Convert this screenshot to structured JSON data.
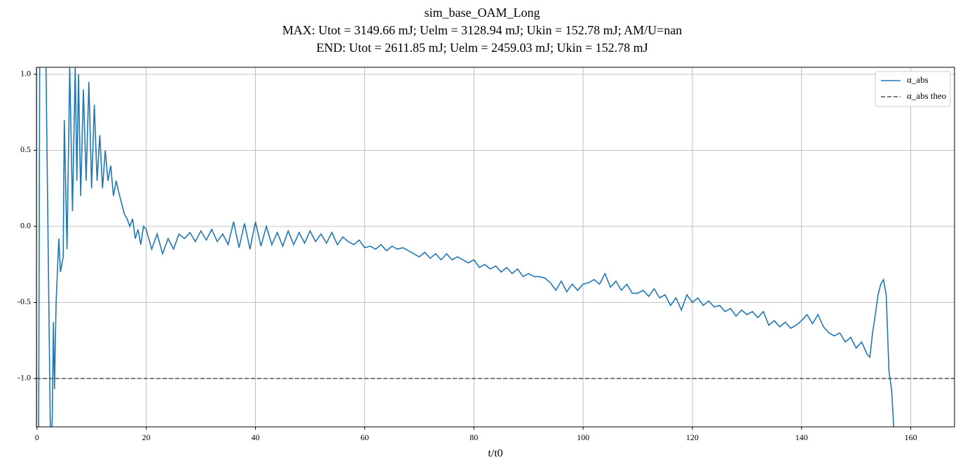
{
  "chart_data": {
    "type": "line",
    "title": "sim_base_OAM_Long",
    "subtitle": [
      "MAX: Utot = 3149.66 mJ;  Uelm = 3128.94 mJ; Ukin = 152.78 mJ;  AM/U=nan",
      "END: Utot = 2611.85 mJ;  Uelm = 2459.03 mJ;  Ukin = 152.78 mJ"
    ],
    "xlabel": "t/t0",
    "xlim": [
      -0.1,
      168
    ],
    "ylim": [
      -1.318,
      1.046
    ],
    "xticks": [
      0,
      20,
      40,
      60,
      80,
      100,
      120,
      140,
      160
    ],
    "yticks": [
      {
        "value": -1,
        "label": "-1.0"
      },
      {
        "value": -0.5,
        "label": "-0.5"
      },
      {
        "value": 0,
        "label": "0.0"
      },
      {
        "value": 0.5,
        "label": "0.5"
      },
      {
        "value": 1,
        "label": "1.0"
      }
    ],
    "grid": true,
    "legend": "upper right",
    "series": [
      {
        "name": "α_abs",
        "color": "#1f77b4",
        "x": [
          0,
          0.3,
          0.5,
          1.5,
          2.5,
          2.8,
          3.0,
          3.2,
          3.5,
          4.0,
          4.3,
          4.8,
          5.0,
          5.5,
          6.0,
          6.5,
          7.0,
          7.3,
          7.6,
          8.0,
          8.5,
          9,
          9.5,
          10,
          10.5,
          11,
          11.5,
          12,
          12.5,
          13,
          13.5,
          14,
          14.5,
          15,
          15.5,
          16,
          16.5,
          17,
          17.5,
          18,
          18.5,
          19,
          19.5,
          20,
          21,
          22,
          23,
          24,
          25,
          26,
          27,
          28,
          29,
          30,
          31,
          32,
          33,
          34,
          35,
          36,
          37,
          38,
          39,
          40,
          41,
          42,
          43,
          44,
          45,
          46,
          47,
          48,
          49,
          50,
          51,
          52,
          53,
          54,
          55,
          56,
          57,
          58,
          59,
          60,
          61,
          62,
          63,
          64,
          65,
          66,
          67,
          68,
          69,
          70,
          71,
          72,
          73,
          74,
          75,
          76,
          77,
          78,
          79,
          80,
          81,
          82,
          83,
          84,
          85,
          86,
          87,
          88,
          89,
          90,
          91,
          92,
          93,
          94,
          95,
          96,
          97,
          98,
          99,
          100,
          101,
          102,
          103,
          104,
          105,
          106,
          107,
          108,
          109,
          110,
          111,
          112,
          113,
          114,
          115,
          116,
          117,
          118,
          119,
          120,
          121,
          122,
          123,
          124,
          125,
          126,
          127,
          128,
          129,
          130,
          131,
          132,
          133,
          134,
          135,
          136,
          137,
          138,
          139,
          140,
          141,
          142,
          143,
          144,
          145,
          146,
          147,
          148,
          149,
          150,
          151,
          152,
          152.5,
          153,
          153.5,
          154,
          154.5,
          155,
          155.5,
          156,
          156.5,
          157
        ],
        "values": [
          -1.4,
          -1.4,
          1.1,
          1.5,
          -1.5,
          -1.26,
          -0.63,
          -1.07,
          -0.5,
          -0.08,
          -0.3,
          -0.2,
          0.7,
          -0.15,
          1.05,
          0.1,
          1.05,
          0.3,
          1.0,
          0.2,
          0.9,
          0.3,
          0.95,
          0.25,
          0.8,
          0.3,
          0.6,
          0.25,
          0.5,
          0.3,
          0.4,
          0.2,
          0.3,
          0.22,
          0.15,
          0.08,
          0.05,
          0.0,
          0.05,
          -0.08,
          -0.02,
          -0.12,
          0.0,
          -0.02,
          -0.15,
          -0.05,
          -0.18,
          -0.08,
          -0.15,
          -0.05,
          -0.08,
          -0.04,
          -0.1,
          -0.03,
          -0.09,
          -0.02,
          -0.1,
          -0.05,
          -0.12,
          0.03,
          -0.14,
          0.02,
          -0.15,
          0.03,
          -0.13,
          0.0,
          -0.12,
          -0.04,
          -0.13,
          -0.03,
          -0.12,
          -0.04,
          -0.11,
          -0.03,
          -0.1,
          -0.05,
          -0.11,
          -0.04,
          -0.12,
          -0.07,
          -0.1,
          -0.12,
          -0.09,
          -0.14,
          -0.13,
          -0.15,
          -0.12,
          -0.16,
          -0.13,
          -0.15,
          -0.14,
          -0.16,
          -0.18,
          -0.2,
          -0.17,
          -0.21,
          -0.18,
          -0.22,
          -0.18,
          -0.22,
          -0.2,
          -0.22,
          -0.24,
          -0.22,
          -0.27,
          -0.25,
          -0.28,
          -0.26,
          -0.3,
          -0.27,
          -0.31,
          -0.28,
          -0.33,
          -0.31,
          -0.33,
          -0.33,
          -0.34,
          -0.37,
          -0.42,
          -0.36,
          -0.43,
          -0.38,
          -0.42,
          -0.38,
          -0.37,
          -0.35,
          -0.38,
          -0.31,
          -0.4,
          -0.36,
          -0.42,
          -0.38,
          -0.44,
          -0.44,
          -0.42,
          -0.46,
          -0.41,
          -0.47,
          -0.45,
          -0.52,
          -0.47,
          -0.55,
          -0.45,
          -0.5,
          -0.47,
          -0.52,
          -0.49,
          -0.53,
          -0.52,
          -0.56,
          -0.54,
          -0.59,
          -0.55,
          -0.58,
          -0.56,
          -0.6,
          -0.56,
          -0.65,
          -0.62,
          -0.66,
          -0.63,
          -0.67,
          -0.65,
          -0.62,
          -0.58,
          -0.64,
          -0.58,
          -0.66,
          -0.7,
          -0.72,
          -0.7,
          -0.76,
          -0.73,
          -0.8,
          -0.76,
          -0.84,
          -0.86,
          -0.7,
          -0.58,
          -0.45,
          -0.38,
          -0.35,
          -0.45,
          -0.95,
          -1.08,
          -1.4
        ]
      },
      {
        "name": "α_abs theo",
        "color": "#555555",
        "dashed": true,
        "x": [
          -0.1,
          168
        ],
        "values": [
          -1,
          -1
        ]
      }
    ]
  }
}
